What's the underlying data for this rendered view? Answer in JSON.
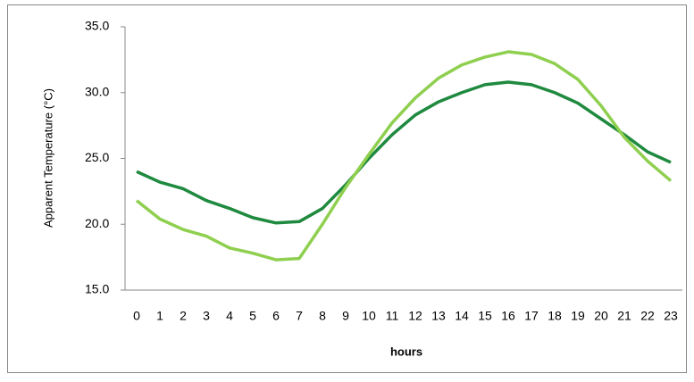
{
  "chart_data": {
    "type": "line",
    "x_label": "hours",
    "y_label": "Apparent Temperature (°C)",
    "categories": [
      0,
      1,
      2,
      3,
      4,
      5,
      6,
      7,
      8,
      9,
      10,
      11,
      12,
      13,
      14,
      15,
      16,
      17,
      18,
      19,
      20,
      21,
      22,
      23
    ],
    "series": [
      {
        "color": "#1f8a3f",
        "values": [
          24.0,
          23.2,
          22.7,
          21.8,
          21.2,
          20.5,
          20.1,
          20.2,
          21.2,
          23.0,
          25.0,
          26.8,
          28.3,
          29.3,
          30.0,
          30.6,
          30.8,
          30.6,
          30.0,
          29.2,
          28.0,
          26.8,
          25.5,
          24.7
        ]
      },
      {
        "color": "#8fcf4f",
        "values": [
          21.8,
          20.4,
          19.6,
          19.1,
          18.2,
          17.8,
          17.3,
          17.4,
          20.0,
          22.8,
          25.3,
          27.7,
          29.6,
          31.1,
          32.1,
          32.7,
          33.1,
          32.9,
          32.2,
          31.0,
          29.0,
          26.6,
          24.8,
          23.3
        ]
      }
    ],
    "ylim": [
      15,
      35
    ],
    "yticks": [
      {
        "value": 15,
        "label": "15.0"
      },
      {
        "value": 20,
        "label": "20.0"
      },
      {
        "value": 25,
        "label": "25.0"
      },
      {
        "value": 30,
        "label": "30.0"
      },
      {
        "value": 35,
        "label": "35.0"
      }
    ],
    "grid": false
  }
}
